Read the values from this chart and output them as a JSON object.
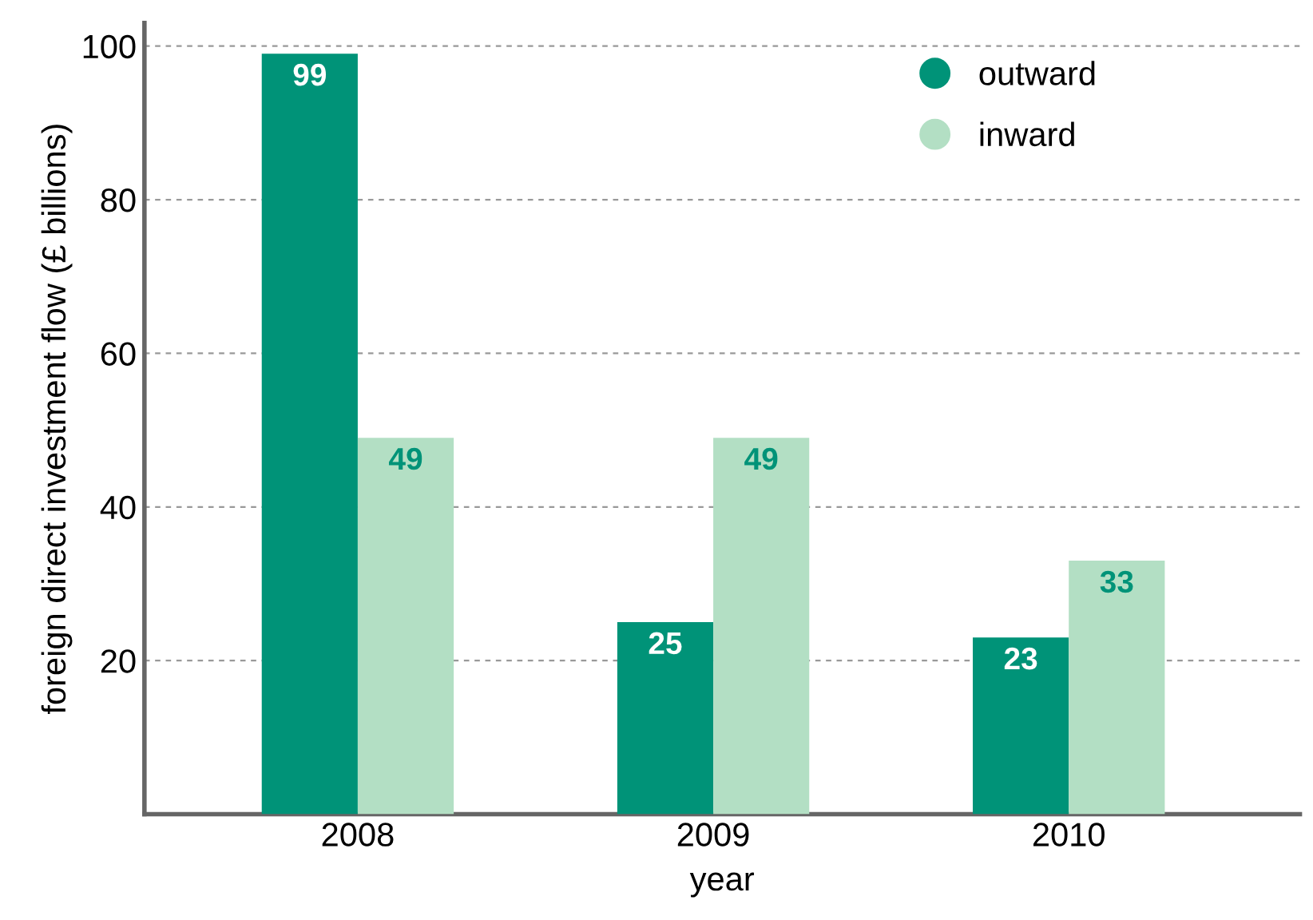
{
  "chart_data": {
    "type": "bar",
    "xlabel": "year",
    "ylabel": "foreign direct investment flow (£ billions)",
    "categories": [
      "2008",
      "2009",
      "2010"
    ],
    "series": [
      {
        "name": "outward",
        "color": "#009378",
        "values": [
          99,
          25,
          23
        ]
      },
      {
        "name": "inward",
        "color": "#b3dfc4",
        "values": [
          49,
          49,
          33
        ]
      }
    ],
    "ylim": [
      0,
      103
    ],
    "yticks": [
      20,
      40,
      60,
      80,
      100
    ],
    "grid": "y",
    "legend": "top right",
    "data_labels": true
  }
}
